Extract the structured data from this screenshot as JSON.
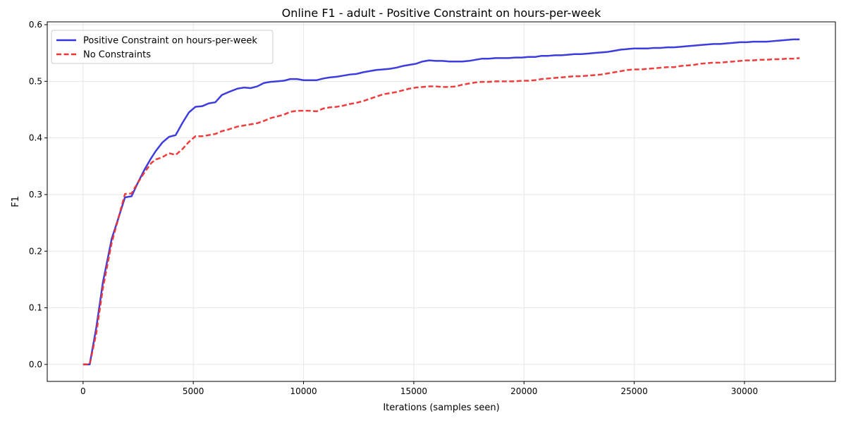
{
  "chart_data": {
    "type": "line",
    "title": "Online F1 - adult - Positive Constraint on hours-per-week",
    "xlabel": "Iterations (samples seen)",
    "ylabel": "F1",
    "xlim": [
      -1625,
      34125
    ],
    "ylim": [
      -0.03,
      0.605
    ],
    "x_ticks": [
      0,
      5000,
      10000,
      15000,
      20000,
      25000,
      30000
    ],
    "x_tick_labels": [
      "0",
      "5000",
      "10000",
      "15000",
      "20000",
      "25000",
      "30000"
    ],
    "y_ticks": [
      0.0,
      0.1,
      0.2,
      0.3,
      0.4,
      0.5,
      0.6
    ],
    "y_tick_labels": [
      "0.0",
      "0.1",
      "0.2",
      "0.3",
      "0.4",
      "0.5",
      "0.6"
    ],
    "grid": true,
    "legend_position": "top-left",
    "series": [
      {
        "name": "Positive Constraint on hours-per-week",
        "color": "#3333dd",
        "style": "solid",
        "x": [
          0,
          300,
          600,
          900,
          1300,
          1600,
          1900,
          2200,
          2500,
          2800,
          3100,
          3300,
          3600,
          3900,
          4200,
          4500,
          4800,
          5100,
          5400,
          5700,
          6000,
          6300,
          6600,
          7000,
          7300,
          7600,
          7900,
          8200,
          8500,
          8800,
          9100,
          9400,
          9700,
          10000,
          10300,
          10600,
          10900,
          11200,
          11500,
          11800,
          12100,
          12400,
          12700,
          13000,
          13300,
          13600,
          13900,
          14200,
          14500,
          14800,
          15100,
          15400,
          15700,
          16000,
          16300,
          16600,
          16900,
          17200,
          17500,
          17800,
          18100,
          18400,
          18700,
          19000,
          19300,
          19600,
          19900,
          20200,
          20500,
          20800,
          21100,
          21400,
          21700,
          22000,
          22300,
          22600,
          22900,
          23200,
          23500,
          23800,
          24100,
          24400,
          24700,
          25000,
          25300,
          25600,
          25900,
          26200,
          26500,
          26800,
          27100,
          27400,
          27700,
          28000,
          28300,
          28600,
          28900,
          29200,
          29500,
          29800,
          30100,
          30400,
          30700,
          31000,
          31300,
          31600,
          31900,
          32200,
          32500
        ],
        "y": [
          0.0,
          0.0,
          0.065,
          0.145,
          0.222,
          0.258,
          0.295,
          0.297,
          0.322,
          0.345,
          0.365,
          0.377,
          0.392,
          0.402,
          0.405,
          0.426,
          0.445,
          0.455,
          0.456,
          0.461,
          0.463,
          0.476,
          0.481,
          0.487,
          0.489,
          0.488,
          0.491,
          0.497,
          0.499,
          0.5,
          0.501,
          0.504,
          0.504,
          0.502,
          0.502,
          0.502,
          0.505,
          0.507,
          0.508,
          0.51,
          0.512,
          0.513,
          0.516,
          0.518,
          0.52,
          0.521,
          0.522,
          0.524,
          0.527,
          0.529,
          0.531,
          0.535,
          0.537,
          0.536,
          0.536,
          0.535,
          0.535,
          0.535,
          0.536,
          0.538,
          0.54,
          0.54,
          0.541,
          0.541,
          0.541,
          0.542,
          0.542,
          0.543,
          0.543,
          0.545,
          0.545,
          0.546,
          0.546,
          0.547,
          0.548,
          0.548,
          0.549,
          0.55,
          0.551,
          0.552,
          0.554,
          0.556,
          0.557,
          0.558,
          0.558,
          0.558,
          0.559,
          0.559,
          0.56,
          0.56,
          0.561,
          0.562,
          0.563,
          0.564,
          0.565,
          0.566,
          0.566,
          0.567,
          0.568,
          0.569,
          0.569,
          0.57,
          0.57,
          0.57,
          0.571,
          0.572,
          0.573,
          0.574,
          0.574
        ]
      },
      {
        "name": "No Constraints",
        "color": "#ee3333",
        "style": "dashed",
        "x": [
          0,
          300,
          600,
          900,
          1300,
          1600,
          1900,
          2200,
          2500,
          2800,
          3100,
          3300,
          3600,
          3900,
          4200,
          4500,
          4800,
          5100,
          5400,
          5700,
          6000,
          6300,
          6600,
          7000,
          7300,
          7600,
          7900,
          8200,
          8500,
          8800,
          9100,
          9400,
          9700,
          10000,
          10300,
          10600,
          10900,
          11200,
          11500,
          11800,
          12100,
          12400,
          12700,
          13000,
          13300,
          13600,
          13900,
          14200,
          14500,
          14800,
          15100,
          15400,
          15700,
          16000,
          16300,
          16600,
          16900,
          17200,
          17500,
          17800,
          18100,
          18400,
          18700,
          19000,
          19300,
          19600,
          19900,
          20200,
          20500,
          20800,
          21100,
          21400,
          21700,
          22000,
          22300,
          22600,
          22900,
          23200,
          23500,
          23800,
          24100,
          24400,
          24700,
          25000,
          25300,
          25600,
          25900,
          26200,
          26500,
          26800,
          27100,
          27400,
          27700,
          28000,
          28300,
          28600,
          28900,
          29200,
          29500,
          29800,
          30100,
          30400,
          30700,
          31000,
          31300,
          31600,
          31900,
          32200,
          32500
        ],
        "y": [
          0.0,
          0.0,
          0.055,
          0.135,
          0.215,
          0.258,
          0.301,
          0.302,
          0.322,
          0.34,
          0.356,
          0.362,
          0.366,
          0.373,
          0.37,
          0.38,
          0.393,
          0.403,
          0.403,
          0.405,
          0.407,
          0.412,
          0.415,
          0.42,
          0.422,
          0.424,
          0.426,
          0.43,
          0.435,
          0.438,
          0.441,
          0.446,
          0.448,
          0.448,
          0.448,
          0.447,
          0.452,
          0.454,
          0.455,
          0.457,
          0.46,
          0.462,
          0.465,
          0.469,
          0.473,
          0.477,
          0.479,
          0.481,
          0.484,
          0.487,
          0.489,
          0.49,
          0.491,
          0.491,
          0.49,
          0.49,
          0.491,
          0.494,
          0.496,
          0.498,
          0.499,
          0.499,
          0.5,
          0.5,
          0.5,
          0.5,
          0.501,
          0.501,
          0.502,
          0.504,
          0.505,
          0.506,
          0.507,
          0.508,
          0.509,
          0.509,
          0.51,
          0.511,
          0.512,
          0.514,
          0.516,
          0.518,
          0.52,
          0.521,
          0.521,
          0.522,
          0.523,
          0.524,
          0.525,
          0.525,
          0.527,
          0.528,
          0.529,
          0.531,
          0.532,
          0.533,
          0.533,
          0.534,
          0.535,
          0.536,
          0.537,
          0.537,
          0.538,
          0.538,
          0.539,
          0.539,
          0.54,
          0.54,
          0.541
        ]
      }
    ]
  }
}
